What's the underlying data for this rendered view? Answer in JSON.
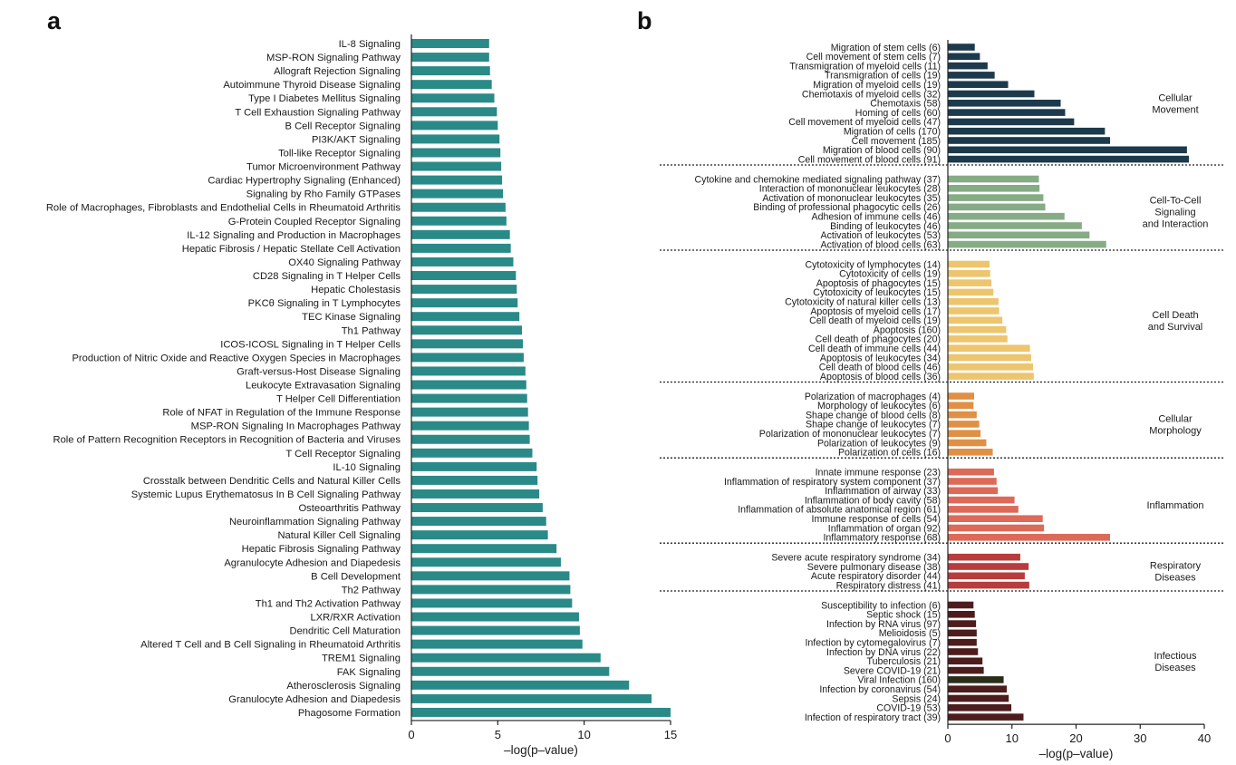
{
  "chart_data": [
    {
      "panel": "a",
      "type": "bar",
      "orientation": "horizontal",
      "color": "#2a8a88",
      "xlabel": "–log(p–value)",
      "xlim": [
        0,
        15
      ],
      "xticks": [
        0,
        5,
        10,
        15
      ],
      "categories": [
        "IL-8 Signaling",
        "MSP-RON Signaling Pathway",
        "Allograft Rejection Signaling",
        "Autoimmune Thyroid Disease Signaling",
        "Type I Diabetes Mellitus Signaling",
        "T Cell Exhaustion Signaling Pathway",
        "B Cell Receptor Signaling",
        "PI3K/AKT Signaling",
        "Toll-like Receptor Signaling",
        "Tumor Microenvironment Pathway",
        "Cardiac Hypertrophy Signaling (Enhanced)",
        "Signaling by Rho Family GTPases",
        "Role of Macrophages, Fibroblasts and Endothelial Cells in Rheumatoid Arthritis",
        "G-Protein Coupled Receptor Signaling",
        "IL-12 Signaling and Production in Macrophages",
        "Hepatic Fibrosis / Hepatic Stellate Cell Activation",
        "OX40 Signaling Pathway",
        "CD28 Signaling in T Helper Cells",
        "Hepatic Cholestasis",
        "PKCθ Signaling in T Lymphocytes",
        "TEC Kinase Signaling",
        "Th1 Pathway",
        "ICOS-ICOSL Signaling in T Helper Cells",
        "Production of Nitric Oxide and Reactive Oxygen Species in Macrophages",
        "Graft-versus-Host Disease Signaling",
        "Leukocyte Extravasation Signaling",
        "T Helper Cell Differentiation",
        "Role of NFAT in Regulation of the Immune Response",
        "MSP-RON Signaling In Macrophages Pathway",
        "Role of Pattern Recognition Receptors in Recognition of Bacteria and Viruses",
        "T Cell Receptor Signaling",
        "IL-10 Signaling",
        "Crosstalk between Dendritic Cells and Natural Killer Cells",
        "Systemic Lupus Erythematosus In B Cell Signaling Pathway",
        "Osteoarthritis Pathway",
        "Neuroinflammation Signaling Pathway",
        "Natural Killer Cell Signaling",
        "Hepatic Fibrosis Signaling Pathway",
        "Agranulocyte Adhesion and Diapedesis",
        "B Cell Development",
        "Th2 Pathway",
        "Th1 and Th2 Activation Pathway",
        "LXR/RXR Activation",
        "Dendritic Cell Maturation",
        "Altered T Cell and B Cell Signaling in Rheumatoid Arthritis",
        "TREM1 Signaling",
        "FAK Signaling",
        "Atherosclerosis Signaling",
        "Granulocyte Adhesion and Diapedesis",
        "Phagosome Formation"
      ],
      "values": [
        4.5,
        4.5,
        4.55,
        4.65,
        4.8,
        4.95,
        5.0,
        5.1,
        5.15,
        5.2,
        5.25,
        5.3,
        5.45,
        5.5,
        5.7,
        5.75,
        5.9,
        6.05,
        6.1,
        6.15,
        6.25,
        6.4,
        6.45,
        6.5,
        6.6,
        6.65,
        6.7,
        6.75,
        6.8,
        6.85,
        7.0,
        7.25,
        7.3,
        7.4,
        7.6,
        7.8,
        7.9,
        8.4,
        8.65,
        9.15,
        9.2,
        9.3,
        9.7,
        9.75,
        9.9,
        10.95,
        11.45,
        12.6,
        13.9,
        15.0
      ]
    },
    {
      "panel": "b",
      "type": "bar",
      "orientation": "horizontal",
      "xlabel": "–log(p–value)",
      "xlim": [
        0,
        40
      ],
      "xticks": [
        0,
        10,
        20,
        30,
        40
      ],
      "groups": [
        {
          "name_lines": [
            "Cellular",
            "Movement"
          ],
          "color": "#1d3a4d",
          "categories": [
            "Migration of stem cells (6)",
            "Cell movement of stem cells (7)",
            "Transmigration of myeloid cells (11)",
            "Transmigration of cells (19)",
            "Migration of myeloid cells (19)",
            "Chemotaxis of myeloid cells (32)",
            "Chemotaxis (58)",
            "Homing of cells (60)",
            "Cell movement of myeloid cells (47)",
            "Migration of cells (170)",
            "Cell movement (185)",
            "Migration of blood cells (90)",
            "Cell movement of blood cells (91)"
          ],
          "values": [
            4.2,
            5.0,
            6.2,
            7.3,
            9.4,
            13.5,
            17.6,
            18.3,
            19.7,
            24.5,
            25.3,
            37.3,
            37.6
          ]
        },
        {
          "name_lines": [
            "Cell-To-Cell",
            "Signaling",
            "and Interaction"
          ],
          "color": "#86ac86",
          "categories": [
            "Cytokine and chemokine mediated signaling pathway (37)",
            "Interaction of mononuclear leukocytes (28)",
            "Activation of mononuclear leukocytes (35)",
            "Binding of professional phagocytic cells (26)",
            "Adhesion of immune cells (46)",
            "Binding of leukocytes (46)",
            "Activation of leukocytes (53)",
            "Activation of blood cells (63)"
          ],
          "values": [
            14.2,
            14.3,
            14.9,
            15.2,
            18.2,
            20.9,
            22.1,
            24.7
          ]
        },
        {
          "name_lines": [
            "Cell Death",
            "and Survival"
          ],
          "color": "#ecc56e",
          "categories": [
            "Cytotoxicity of lymphocytes (14)",
            "Cytotoxicity of cells (19)",
            "Apoptosis of phagocytes (15)",
            "Cytotoxicity of leukocytes (15)",
            "Cytotoxicity of natural killer cells (13)",
            "Apoptosis of myeloid cells (17)",
            "Cell death of myeloid cells (19)",
            "Apoptosis (160)",
            "Cell death of phagocytes (20)",
            "Cell death of immune cells (44)",
            "Apoptosis of leukocytes (34)",
            "Cell death of blood cells (46)",
            "Apoptosis of blood cells (36)"
          ],
          "values": [
            6.5,
            6.6,
            6.8,
            7.1,
            7.9,
            8.0,
            8.5,
            9.1,
            9.3,
            12.8,
            13.0,
            13.3,
            13.4
          ]
        },
        {
          "name_lines": [
            "Cellular",
            "Morphology"
          ],
          "color": "#e09045",
          "categories": [
            "Polarization of macrophages (4)",
            "Morphology of leukocytes (6)",
            "Shape change of blood cells (8)",
            "Shape change of leukocytes (7)",
            "Polarization of mononuclear leukocytes (7)",
            "Polarization of leukocytes (9)",
            "Polarization of cells (16)"
          ],
          "values": [
            4.1,
            4.0,
            4.5,
            4.9,
            5.1,
            6.0,
            7.0
          ]
        },
        {
          "name_lines": [
            "Inflammation"
          ],
          "color": "#dd6a58",
          "categories": [
            "Innate immune response (23)",
            "Inflammation of respiratory system component (37)",
            "Inflammation of airway (33)",
            "Inflammation of body cavity (58)",
            "Inflammation of absolute anatomical region (61)",
            "Immune response of cells (54)",
            "Inflammation of organ (92)",
            "Inflammatory response (68)"
          ],
          "values": [
            7.2,
            7.6,
            7.8,
            10.4,
            11.0,
            14.8,
            15.0,
            25.3
          ]
        },
        {
          "name_lines": [
            "Respiratory",
            "Diseases"
          ],
          "color": "#b83c3c",
          "categories": [
            "Severe acute respiratory syndrome (34)",
            "Severe pulmonary disease (38)",
            "Acute respiratory disorder (44)",
            "Respiratory distress (41)"
          ],
          "values": [
            11.3,
            12.6,
            12.0,
            12.7
          ]
        },
        {
          "name_lines": [
            "Infectious",
            "Diseases"
          ],
          "color": "#4d1d1d",
          "highlight": {
            "category": "Viral Infection (160)",
            "color": "#2a2e18"
          },
          "categories": [
            "Susceptibility to infection (6)",
            "Septic shock (15)",
            "Infection by RNA virus (97)",
            "Melioidosis (5)",
            "Infection by cytomegalovirus (7)",
            "Infection by DNA virus (22)",
            "Tuberculosis (21)",
            "Severe COVID-19 (21)",
            "Viral Infection (160)",
            "Infection by coronavirus (54)",
            "Sepsis (24)",
            "COVID-19 (53)",
            "Infection of respiratory tract (39)"
          ],
          "values": [
            4.0,
            4.2,
            4.4,
            4.5,
            4.5,
            4.7,
            5.4,
            5.6,
            8.7,
            9.2,
            9.5,
            9.9,
            11.8
          ]
        }
      ]
    }
  ]
}
